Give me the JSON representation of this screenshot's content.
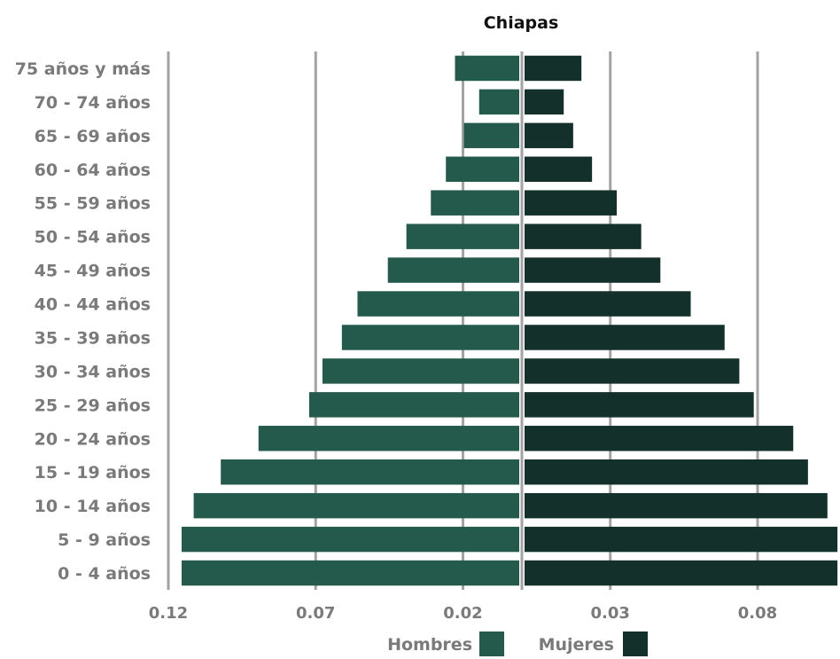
{
  "chart_data": {
    "type": "bar",
    "title": "Chiapas",
    "categories": [
      "75 años y más",
      "70 - 74 años",
      "65 - 69 años",
      "60 - 64 años",
      "55 - 59 años",
      "50 - 54 años",
      "45 - 49 años",
      "40 - 44 años",
      "35 - 39 años",
      "30 - 34 años",
      "25 - 29 años",
      "20 - 24 años",
      "15 - 19 años",
      "10 - 14 años",
      "5 - 9 años",
      "0 - 4 años"
    ],
    "series": [
      {
        "name": "Hombres",
        "color": "#245a4c",
        "values": [
          0.0218,
          0.0136,
          0.0188,
          0.0249,
          0.03,
          0.0383,
          0.0446,
          0.0549,
          0.0602,
          0.0668,
          0.0713,
          0.0885,
          0.1013,
          0.1105,
          0.1146,
          0.1146
        ]
      },
      {
        "name": "Mujeres",
        "color": "#14302a",
        "values": [
          0.0193,
          0.0133,
          0.0165,
          0.0229,
          0.0313,
          0.0396,
          0.0461,
          0.0564,
          0.0679,
          0.0729,
          0.0778,
          0.0912,
          0.0962,
          0.1028,
          0.1062,
          0.1062
        ]
      }
    ],
    "xticks": [
      "0.12",
      "0.07",
      "0.02",
      "0.03",
      "0.08"
    ],
    "xlim": [
      -0.12,
      0.105
    ],
    "grid": true,
    "legend": "bottom"
  }
}
